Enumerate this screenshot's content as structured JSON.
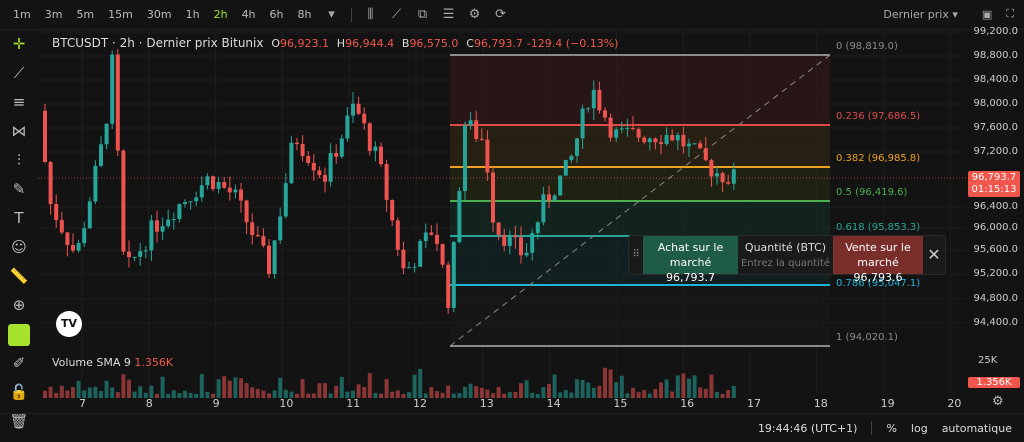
{
  "toolbar": {
    "timeframes": [
      "1m",
      "3m",
      "5m",
      "15m",
      "30m",
      "1h",
      "2h",
      "4h",
      "6h",
      "8h"
    ],
    "active": "2h",
    "price_source": "Dernier prix"
  },
  "legend": {
    "title": "BTCUSDT · 2h · Dernier prix Bitunix",
    "o_label": "O",
    "o": "96,923.1",
    "h_label": "H",
    "h": "96,944.4",
    "b_label": "B",
    "b": "96,575.0",
    "c_label": "C",
    "c": "96,793.7",
    "change": "-129.4 (−0.13%)"
  },
  "yaxis": [
    "99,200.0",
    "98,800.0",
    "98,400.0",
    "98,000.0",
    "97,600.0",
    "97,200.0",
    "96,400.0",
    "96,000.0",
    "95,600.0",
    "95,200.0",
    "94,800.0",
    "94,400.0"
  ],
  "current_price": {
    "price": "96,793.7",
    "countdown": "01:15:13"
  },
  "fib": [
    {
      "label": "0 (98,819.0)",
      "color": "#8a8a8a"
    },
    {
      "label": "0.236 (97,686.5)",
      "color": "#e04a4a"
    },
    {
      "label": "0.382 (96,985.8)",
      "color": "#f0a020"
    },
    {
      "label": "0.5 (96,419.6)",
      "color": "#4caf50"
    },
    {
      "label": "0.618 (95,853.3)",
      "color": "#26a69a"
    },
    {
      "label": "0.786 (95,047.1)",
      "color": "#1eb4d8"
    },
    {
      "label": "1 (94,020.1)",
      "color": "#8a8a8a"
    }
  ],
  "trade": {
    "buy_label": "Achat sur le marché",
    "buy_price": "96,793.7",
    "qty_label": "Quantité (BTC)",
    "qty_placeholder": "Entrez la quantité",
    "sell_label": "Vente sur le marché",
    "sell_price": "96,793.6"
  },
  "volume": {
    "label": "Volume SMA 9",
    "value": "1.356K",
    "axis_top": "25K",
    "tag": "1.356K"
  },
  "xaxis": [
    "7",
    "8",
    "9",
    "10",
    "11",
    "12",
    "13",
    "14",
    "15",
    "16",
    "17",
    "18",
    "19",
    "20"
  ],
  "bottom": {
    "time": "19:44:46 (UTC+1)",
    "percent": "%",
    "log": "log",
    "auto": "automatique"
  },
  "colors": {
    "up": "#26a69a",
    "down": "#ef5350",
    "accent": "#a6e22e"
  }
}
